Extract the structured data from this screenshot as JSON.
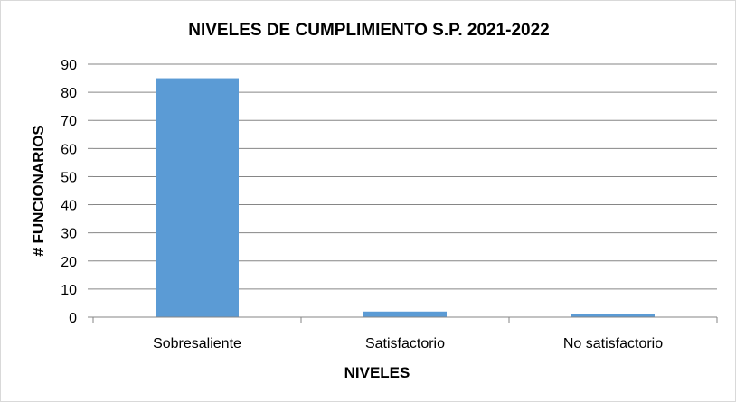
{
  "chart_data": {
    "type": "bar",
    "title": "NIVELES DE CUMPLIMIENTO S.P. 2021-2022",
    "xlabel": "NIVELES",
    "ylabel": "# FUNCIONARIOS",
    "categories": [
      "Sobresaliente",
      "Satisfactorio",
      "No satisfactorio"
    ],
    "values": [
      85,
      2,
      1
    ],
    "ylim": [
      0,
      90
    ],
    "yticks": [
      0,
      10,
      20,
      30,
      40,
      50,
      60,
      70,
      80,
      90
    ],
    "grid": true,
    "legend": "none",
    "bar_color": "#5b9bd5",
    "grid_color": "#868686"
  }
}
